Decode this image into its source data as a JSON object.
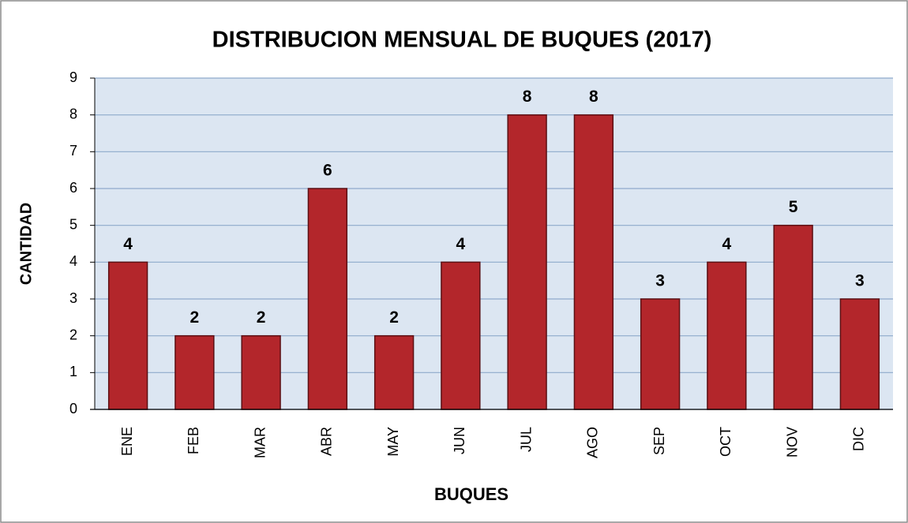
{
  "chart_data": {
    "type": "bar",
    "title": "DISTRIBUCION MENSUAL DE BUQUES (2017)",
    "x_label": "BUQUES",
    "y_label": "CANTIDAD",
    "categories": [
      "ENE",
      "FEB",
      "MAR",
      "ABR",
      "MAY",
      "JUN",
      "JUL",
      "AGO",
      "SEP",
      "OCT",
      "NOV",
      "DIC"
    ],
    "values": [
      4,
      2,
      2,
      6,
      2,
      4,
      8,
      8,
      3,
      4,
      5,
      3
    ],
    "color": "#b3262b",
    "ylim": [
      0,
      9
    ],
    "yticks": [
      0,
      1,
      2,
      3,
      4,
      5,
      6,
      7,
      8,
      9
    ],
    "grid": true
  }
}
